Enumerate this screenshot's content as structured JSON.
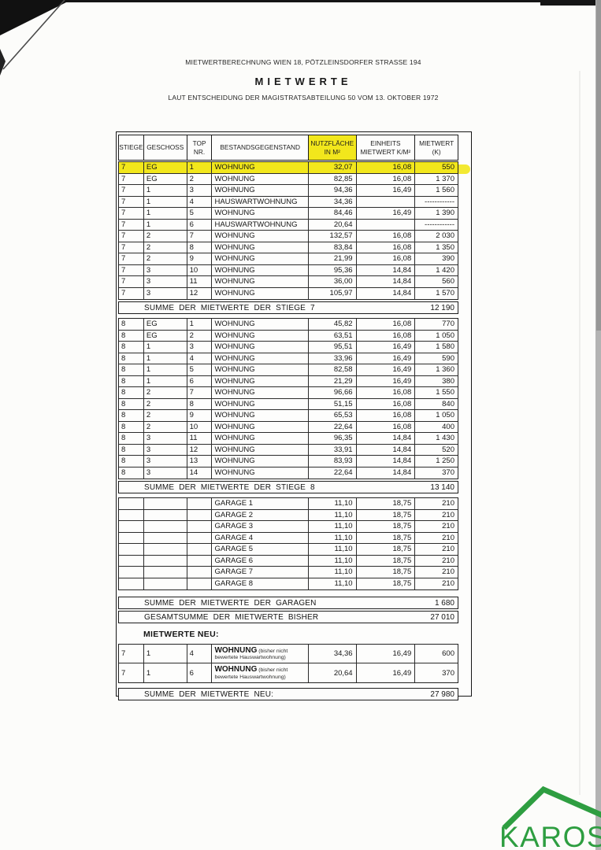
{
  "header": {
    "line1": "MIETWERTBERECHNUNG WIEN 18, PÖTZLEINSDORFER STRASSE 194",
    "title": "MIETWERTE",
    "line2": "LAUT ENTSCHEIDUNG DER MAGISTRATSABTEILUNG 50 VOM 13. OKTOBER 1972"
  },
  "table": {
    "columns": [
      "STIEGE",
      "GESCHOSS",
      "TOP NR.",
      "BESTANDSGEGENSTAND",
      "NUTZFLÄCHE\nIN M²",
      "EINHEITS\nMIETWERT K/M²",
      "MIETWERT\n(K)"
    ],
    "highlight_color": "#f2e71c",
    "sections": {
      "stiege7": {
        "highlight_row": 0,
        "rows": [
          [
            "7",
            "EG",
            "1",
            "WOHNUNG",
            "32,07",
            "16,08",
            "550"
          ],
          [
            "7",
            "EG",
            "2",
            "WOHNUNG",
            "82,85",
            "16,08",
            "1 370"
          ],
          [
            "7",
            "1",
            "3",
            "WOHNUNG",
            "94,36",
            "16,49",
            "1 560"
          ],
          [
            "7",
            "1",
            "4",
            "HAUSWARTWOHNUNG",
            "34,36",
            "",
            "------------"
          ],
          [
            "7",
            "1",
            "5",
            "WOHNUNG",
            "84,46",
            "16,49",
            "1 390"
          ],
          [
            "7",
            "1",
            "6",
            "HAUSWARTWOHNUNG",
            "20,64",
            "",
            "------------"
          ],
          [
            "7",
            "2",
            "7",
            "WOHNUNG",
            "132,57",
            "16,08",
            "2 030"
          ],
          [
            "7",
            "2",
            "8",
            "WOHNUNG",
            "83,84",
            "16,08",
            "1 350"
          ],
          [
            "7",
            "2",
            "9",
            "WOHNUNG",
            "21,99",
            "16,08",
            "390"
          ],
          [
            "7",
            "3",
            "10",
            "WOHNUNG",
            "95,36",
            "14,84",
            "1 420"
          ],
          [
            "7",
            "3",
            "11",
            "WOHNUNG",
            "36,00",
            "14,84",
            "560"
          ],
          [
            "7",
            "3",
            "12",
            "WOHNUNG",
            "105,97",
            "14,84",
            "1 570"
          ]
        ],
        "summe": {
          "label": "SUMME DER MIETWERTE DER STIEGE 7",
          "value": "12 190"
        }
      },
      "stiege8": {
        "rows": [
          [
            "8",
            "EG",
            "1",
            "WOHNUNG",
            "45,82",
            "16,08",
            "770"
          ],
          [
            "8",
            "EG",
            "2",
            "WOHNUNG",
            "63,51",
            "16,08",
            "1 050"
          ],
          [
            "8",
            "1",
            "3",
            "WOHNUNG",
            "95,51",
            "16,49",
            "1 580"
          ],
          [
            "8",
            "1",
            "4",
            "WOHNUNG",
            "33,96",
            "16,49",
            "590"
          ],
          [
            "8",
            "1",
            "5",
            "WOHNUNG",
            "82,58",
            "16,49",
            "1 360"
          ],
          [
            "8",
            "1",
            "6",
            "WOHNUNG",
            "21,29",
            "16,49",
            "380"
          ],
          [
            "8",
            "2",
            "7",
            "WOHNUNG",
            "96,66",
            "16,08",
            "1 550"
          ],
          [
            "8",
            "2",
            "8",
            "WOHNUNG",
            "51,15",
            "16,08",
            "840"
          ],
          [
            "8",
            "2",
            "9",
            "WOHNUNG",
            "65,53",
            "16,08",
            "1 050"
          ],
          [
            "8",
            "2",
            "10",
            "WOHNUNG",
            "22,64",
            "16,08",
            "400"
          ],
          [
            "8",
            "3",
            "11",
            "WOHNUNG",
            "96,35",
            "14,84",
            "1 430"
          ],
          [
            "8",
            "3",
            "12",
            "WOHNUNG",
            "33,91",
            "14,84",
            "520"
          ],
          [
            "8",
            "3",
            "13",
            "WOHNUNG",
            "83,93",
            "14,84",
            "1 250"
          ],
          [
            "8",
            "3",
            "14",
            "WOHNUNG",
            "22,64",
            "14,84",
            "370"
          ]
        ],
        "summe": {
          "label": "SUMME DER MIETWERTE DER STIEGE 8",
          "value": "13 140"
        }
      },
      "garagen": {
        "rows": [
          [
            "",
            "",
            "",
            "GARAGE 1",
            "11,10",
            "18,75",
            "210"
          ],
          [
            "",
            "",
            "",
            "GARAGE 2",
            "11,10",
            "18,75",
            "210"
          ],
          [
            "",
            "",
            "",
            "GARAGE 3",
            "11,10",
            "18,75",
            "210"
          ],
          [
            "",
            "",
            "",
            "GARAGE 4",
            "11,10",
            "18,75",
            "210"
          ],
          [
            "",
            "",
            "",
            "GARAGE 5",
            "11,10",
            "18,75",
            "210"
          ],
          [
            "",
            "",
            "",
            "GARAGE 6",
            "11,10",
            "18,75",
            "210"
          ],
          [
            "",
            "",
            "",
            "GARAGE 7",
            "11,10",
            "18,75",
            "210"
          ],
          [
            "",
            "",
            "",
            "GARAGE 8",
            "11,10",
            "18,75",
            "210"
          ]
        ],
        "summe": {
          "label": "SUMME DER MIETWERTE DER GARAGEN",
          "value": "1 680"
        }
      },
      "gesamt": {
        "label": "GESAMTSUMME DER MIETWERTE BISHER",
        "value": "27 010"
      },
      "neu": {
        "heading": "MIETWERTE NEU:",
        "rows": [
          {
            "stiege": "7",
            "geschoss": "1",
            "top": "4",
            "name": "WOHNUNG",
            "note1": "(bisher nicht",
            "note2": "bewertete Hauswartwohnung)",
            "flaeche": "34,36",
            "einheit": "16,49",
            "wert": "600"
          },
          {
            "stiege": "7",
            "geschoss": "1",
            "top": "6",
            "name": "WOHNUNG",
            "note1": "(bisher nicht",
            "note2": "bewertete Hauswartwohnung)",
            "flaeche": "20,64",
            "einheit": "16,49",
            "wert": "370"
          }
        ],
        "summe": {
          "label": "SUMME  DER  MIETWERTE NEU:",
          "value": "27 980"
        }
      }
    }
  },
  "branding": {
    "logo_text": "KAROS",
    "logo_color": "#2e9e41"
  }
}
